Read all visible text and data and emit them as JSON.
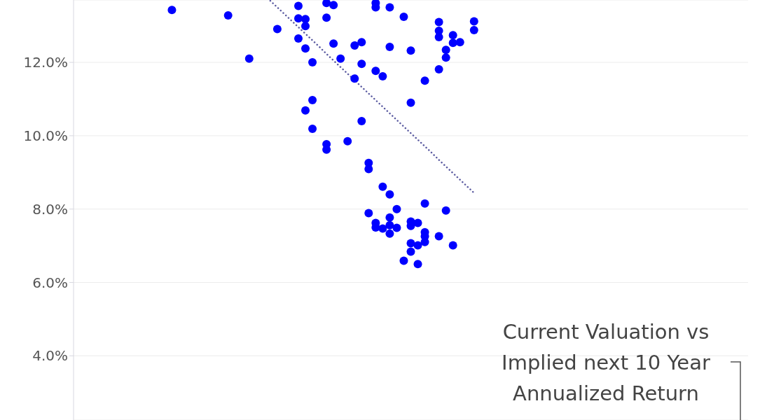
{
  "chart_data": {
    "type": "scatter",
    "ylim": [
      2.25,
      13.7
    ],
    "categories": [
      null,
      null,
      null,
      null,
      null,
      null,
      null,
      null,
      null,
      null,
      null,
      null,
      null,
      null,
      null,
      null,
      null,
      null,
      null,
      null,
      null,
      null,
      null,
      null,
      null,
      null,
      null,
      null,
      null,
      null,
      null,
      null,
      null,
      null,
      null,
      null,
      null,
      null,
      null,
      null,
      null,
      null,
      null,
      null,
      null,
      null,
      null,
      null,
      null,
      null,
      null,
      null,
      null,
      null,
      null,
      null,
      null,
      null,
      null,
      null,
      null,
      null,
      null,
      null,
      null,
      null,
      null,
      null,
      null,
      null,
      null,
      null,
      null,
      null,
      null,
      null,
      null,
      null,
      null,
      null,
      null,
      null,
      null,
      null,
      null,
      null,
      null,
      null,
      null,
      null,
      null,
      null,
      null,
      null,
      null,
      null,
      null
    ],
    "yticks": [
      {
        "value": 4,
        "label": "4.0%"
      },
      {
        "value": 6,
        "label": "6.0%"
      },
      {
        "value": 8,
        "label": "8.0%"
      },
      {
        "value": 10,
        "label": "10.0%"
      },
      {
        "value": 12,
        "label": "12.0%"
      }
    ],
    "tick_labels": "y",
    "grid": "y",
    "marker": "circle",
    "annotations": [
      "Current Valuation vs Implied next 10 Year Annualized Return"
    ],
    "series": [
      {
        "color": "#0000ff",
        "values": [
          null,
          null,
          null,
          null,
          null,
          null,
          null,
          null,
          null,
          null,
          null,
          null,
          null,
          null,
          13.43,
          null,
          null,
          null,
          null,
          null,
          null,
          null,
          13.28,
          null,
          null,
          12.1,
          null,
          null,
          null,
          12.91,
          null,
          null,
          13.54,
          13.18,
          12.0,
          null,
          13.62,
          13.56,
          12.1,
          9.85,
          11.56,
          12.55,
          9.26,
          11.77,
          11.62,
          8.4,
          8.0,
          13.24,
          12.32,
          7.62,
          11.5,
          null,
          13.1,
          12.34,
          12.74,
          12.55,
          null,
          13.12,
          null,
          null,
          null,
          null,
          null,
          null,
          null,
          null,
          null,
          null,
          null,
          null,
          null,
          null,
          null,
          null,
          null,
          null,
          null,
          null,
          null,
          null,
          null,
          null,
          null,
          null,
          null,
          null,
          null,
          null,
          null,
          null,
          null,
          null,
          null,
          null,
          null,
          null,
          null
        ]
      },
      {
        "color": "#0000ff",
        "values": [
          null,
          null,
          null,
          null,
          null,
          null,
          null,
          null,
          null,
          null,
          null,
          null,
          null,
          null,
          null,
          null,
          null,
          null,
          null,
          null,
          null,
          null,
          null,
          null,
          null,
          null,
          null,
          null,
          null,
          null,
          null,
          null,
          13.2,
          12.99,
          10.97,
          null,
          13.22,
          12.51,
          null,
          null,
          12.46,
          11.96,
          9.09,
          13.62,
          8.61,
          13.5,
          7.49,
          6.59,
          10.9,
          7.01,
          8.15,
          null,
          12.86,
          12.13,
          12.53,
          null,
          null,
          12.88,
          null,
          null,
          null,
          null,
          null,
          null,
          null,
          null,
          null,
          null,
          null,
          null,
          null,
          null,
          null,
          null,
          null,
          null,
          null,
          null,
          null,
          null,
          null,
          null,
          null,
          null,
          null,
          null,
          null,
          null,
          null,
          null,
          null,
          null,
          null,
          null,
          null,
          null,
          null
        ]
      },
      {
        "color": "#0000ff",
        "values": [
          null,
          null,
          null,
          null,
          null,
          null,
          null,
          null,
          null,
          null,
          null,
          null,
          null,
          null,
          null,
          null,
          null,
          null,
          null,
          null,
          null,
          null,
          null,
          null,
          null,
          null,
          null,
          null,
          null,
          null,
          null,
          null,
          12.65,
          12.38,
          10.19,
          null,
          9.62,
          null,
          null,
          null,
          null,
          10.4,
          7.89,
          13.5,
          7.47,
          12.42,
          null,
          null,
          7.66,
          6.5,
          7.37,
          null,
          12.69,
          7.96,
          7.01,
          null,
          null,
          null,
          null,
          null,
          null,
          null,
          null,
          null,
          null,
          null,
          null,
          null,
          null,
          null,
          null,
          null,
          null,
          null,
          null,
          null,
          null,
          null,
          null,
          null,
          null,
          null,
          null,
          null,
          null,
          null,
          null,
          null,
          null,
          null,
          null,
          null,
          null,
          null,
          null,
          null,
          null
        ]
      },
      {
        "color": "#0000ff",
        "values": [
          null,
          null,
          null,
          null,
          null,
          null,
          null,
          null,
          null,
          null,
          null,
          null,
          null,
          null,
          null,
          null,
          null,
          null,
          null,
          null,
          null,
          null,
          null,
          null,
          null,
          null,
          null,
          null,
          null,
          null,
          null,
          null,
          null,
          10.69,
          null,
          null,
          9.77,
          null,
          null,
          null,
          null,
          null,
          null,
          7.62,
          null,
          7.77,
          null,
          null,
          null,
          null,
          7.26,
          null,
          11.81,
          null,
          null,
          null,
          null,
          null,
          null,
          null,
          null,
          null,
          null,
          null,
          null,
          null,
          null,
          null,
          null,
          null,
          null,
          null,
          null,
          null,
          null,
          null,
          null,
          null,
          null,
          null,
          null,
          null,
          null,
          null,
          null,
          null,
          null,
          null,
          null,
          null,
          null,
          null,
          null,
          null,
          null,
          null,
          null
        ]
      },
      {
        "color": "#0000ff",
        "values": [
          null,
          null,
          null,
          null,
          null,
          null,
          null,
          null,
          null,
          null,
          null,
          null,
          null,
          null,
          null,
          null,
          null,
          null,
          null,
          null,
          null,
          null,
          null,
          null,
          null,
          null,
          null,
          null,
          null,
          null,
          null,
          null,
          null,
          null,
          null,
          null,
          null,
          null,
          null,
          null,
          null,
          null,
          null,
          7.5,
          null,
          7.56,
          null,
          null,
          7.54,
          null,
          7.1,
          null,
          7.26,
          null,
          null,
          null,
          null,
          null,
          null,
          null,
          null,
          null,
          null,
          null,
          null,
          null,
          null,
          null,
          null,
          null,
          null,
          null,
          null,
          null,
          null,
          null,
          null,
          null,
          null,
          null,
          null,
          null,
          null,
          null,
          null,
          null,
          null,
          null,
          null,
          null,
          null,
          null,
          null,
          null,
          null,
          null,
          null
        ]
      },
      {
        "color": "#0000ff",
        "values": [
          null,
          null,
          null,
          null,
          null,
          null,
          null,
          null,
          null,
          null,
          null,
          null,
          null,
          null,
          null,
          null,
          null,
          null,
          null,
          null,
          null,
          null,
          null,
          null,
          null,
          null,
          null,
          null,
          null,
          null,
          null,
          null,
          null,
          null,
          null,
          null,
          null,
          null,
          null,
          null,
          null,
          null,
          null,
          null,
          null,
          7.33,
          null,
          null,
          7.07,
          null,
          null,
          null,
          null,
          null,
          null,
          null,
          null,
          null,
          null,
          null,
          null,
          null,
          null,
          null,
          null,
          null,
          null,
          null,
          null,
          null,
          null,
          null,
          null,
          null,
          null,
          null,
          null,
          null,
          null,
          null,
          null,
          null,
          null,
          null,
          null,
          null,
          null,
          null,
          null,
          null,
          null,
          null,
          null,
          null,
          null,
          null,
          null
        ]
      },
      {
        "color": "#0000ff",
        "values": [
          null,
          null,
          null,
          null,
          null,
          null,
          null,
          null,
          null,
          null,
          null,
          null,
          null,
          null,
          null,
          null,
          null,
          null,
          null,
          null,
          null,
          null,
          null,
          null,
          null,
          null,
          null,
          null,
          null,
          null,
          null,
          null,
          null,
          null,
          null,
          null,
          null,
          null,
          null,
          null,
          null,
          null,
          null,
          null,
          null,
          null,
          null,
          null,
          6.84,
          null,
          null,
          null,
          null,
          null,
          null,
          null,
          null,
          null,
          null,
          null,
          null,
          null,
          null,
          null,
          null,
          null,
          null,
          null,
          null,
          null,
          null,
          null,
          null,
          null,
          null,
          null,
          null,
          null,
          null,
          null,
          null,
          null,
          null,
          null,
          null,
          null,
          null,
          null,
          null,
          null,
          null,
          null,
          null,
          null,
          null,
          null,
          null
        ]
      },
      {
        "type": "line",
        "color": "#5a5aa0",
        "line_style": "dotted",
        "marker": "none",
        "values": [
          null,
          null,
          null,
          null,
          null,
          null,
          null,
          null,
          null,
          null,
          null,
          null,
          null,
          null,
          null,
          null,
          null,
          null,
          null,
          null,
          null,
          null,
          null,
          null,
          null,
          null,
          null,
          null,
          13.68,
          13.5,
          13.32,
          13.14,
          12.96,
          12.78,
          12.6,
          12.42,
          12.23,
          12.05,
          11.87,
          11.69,
          11.51,
          11.33,
          11.15,
          10.97,
          10.79,
          10.61,
          10.43,
          10.25,
          10.07,
          9.89,
          9.71,
          9.53,
          9.34,
          9.16,
          8.98,
          8.8,
          8.62,
          8.44,
          null,
          null,
          null,
          null,
          null,
          null,
          null,
          null,
          null,
          null,
          null,
          null,
          null,
          null,
          null,
          null,
          null,
          null,
          null,
          null,
          null,
          null,
          null,
          null,
          null,
          null,
          null,
          null,
          null,
          null,
          null,
          null,
          null,
          null,
          null,
          null,
          null,
          null,
          null
        ]
      }
    ]
  }
}
